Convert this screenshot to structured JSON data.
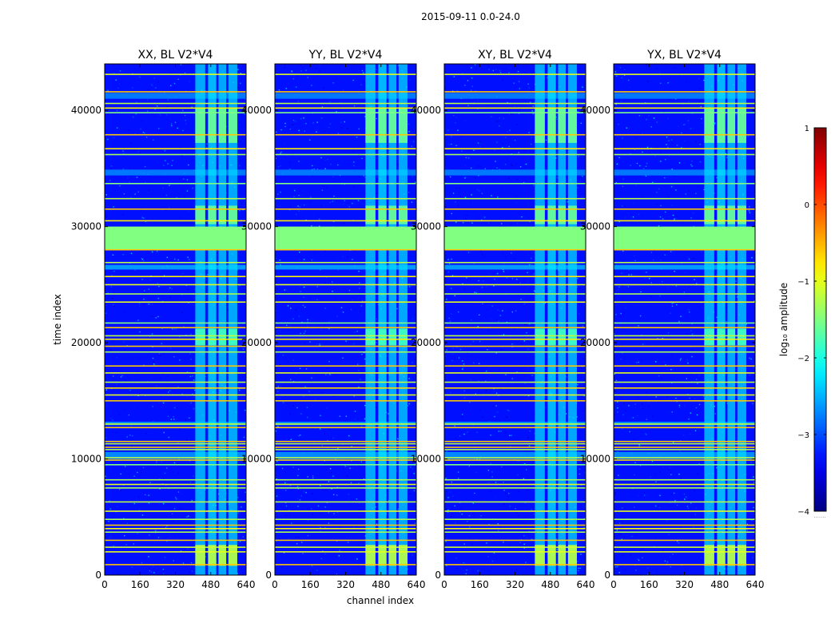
{
  "figure": {
    "suptitle": "2015-09-11 0.0-24.0"
  },
  "chart_data": {
    "type": "heatmap",
    "xlabel": "channel index",
    "ylabel": "time index",
    "xlim": [
      0,
      640
    ],
    "ylim": [
      0,
      44000
    ],
    "x_ticks": [
      0,
      160,
      320,
      480,
      640
    ],
    "y_ticks": [
      0,
      10000,
      20000,
      30000,
      40000
    ],
    "x_tick_labels": [
      "0",
      "160",
      "320",
      "480",
      "640"
    ],
    "y_tick_labels": [
      "0",
      "10000",
      "20000",
      "30000",
      "40000"
    ],
    "panels": [
      {
        "title": "XX, BL V2*V4",
        "pol": "XX",
        "crosspol": false
      },
      {
        "title": "YY, BL V2*V4",
        "pol": "YY",
        "crosspol": false
      },
      {
        "title": "XY, BL V2*V4",
        "pol": "XY",
        "crosspol": true
      },
      {
        "title": "YX, BL V2*V4",
        "pol": "YX",
        "crosspol": true
      }
    ],
    "background_log_amplitude": -3.3,
    "flag_value": -1.5,
    "flagged_bands": [
      {
        "t0": 28000,
        "t1": 30000,
        "value": -1.5
      }
    ],
    "rfi_channels": [
      {
        "c0": 410,
        "c1": 455,
        "value": -2.3
      },
      {
        "c0": 468,
        "c1": 505,
        "value": -2.2
      },
      {
        "c0": 515,
        "c1": 550,
        "value": -2.3
      },
      {
        "c0": 560,
        "c1": 600,
        "value": -2.3
      }
    ],
    "rfi_bursts": [
      {
        "t0": 37200,
        "t1": 40200,
        "value": -1.6
      },
      {
        "t0": 30200,
        "t1": 31800,
        "value": -1.6
      },
      {
        "t0": 19800,
        "t1": 21200,
        "value": -1.8
      },
      {
        "t0": 800,
        "t1": 2600,
        "value": -1.2
      }
    ],
    "horizontal_lines": [
      {
        "t": 43100,
        "value": -1.0
      },
      {
        "t": 41600,
        "value": -0.6
      },
      {
        "t": 40600,
        "value": -1.2
      },
      {
        "t": 40200,
        "value": -0.8
      },
      {
        "t": 39800,
        "value": -1.5
      },
      {
        "t": 37900,
        "value": -0.6
      },
      {
        "t": 36700,
        "value": -0.8
      },
      {
        "t": 36200,
        "value": -1.3
      },
      {
        "t": 33700,
        "value": -1.5
      },
      {
        "t": 32400,
        "value": -1.2
      },
      {
        "t": 31500,
        "value": -0.6
      },
      {
        "t": 30500,
        "value": -0.8
      },
      {
        "t": 28000,
        "value": -0.6
      },
      {
        "t": 26900,
        "value": -1.2
      },
      {
        "t": 25700,
        "value": -0.8
      },
      {
        "t": 25000,
        "value": -1.0
      },
      {
        "t": 24200,
        "value": -1.3
      },
      {
        "t": 23500,
        "value": -1.0
      },
      {
        "t": 21700,
        "value": -1.5
      },
      {
        "t": 21300,
        "value": -0.6
      },
      {
        "t": 20600,
        "value": -1.2
      },
      {
        "t": 20300,
        "value": -0.8
      },
      {
        "t": 19700,
        "value": -0.6
      },
      {
        "t": 19200,
        "value": -1.3
      },
      {
        "t": 18000,
        "value": -0.6
      },
      {
        "t": 17400,
        "value": -1.0
      },
      {
        "t": 16600,
        "value": -1.2
      },
      {
        "t": 16100,
        "value": -0.7
      },
      {
        "t": 15500,
        "value": -1.0
      },
      {
        "t": 15000,
        "value": -0.6
      },
      {
        "t": 13000,
        "value": -1.1
      },
      {
        "t": 12700,
        "value": -0.6
      },
      {
        "t": 11500,
        "value": -0.6
      },
      {
        "t": 11300,
        "value": -1.2
      },
      {
        "t": 11000,
        "value": -0.6
      },
      {
        "t": 10800,
        "value": -1.3
      },
      {
        "t": 10100,
        "value": -1.2
      },
      {
        "t": 9900,
        "value": -0.7
      },
      {
        "t": 9500,
        "value": -1.5
      },
      {
        "t": 8200,
        "value": -1.3
      },
      {
        "t": 7800,
        "value": -1.0
      },
      {
        "t": 7500,
        "value": -1.3
      },
      {
        "t": 6300,
        "value": -1.2
      },
      {
        "t": 5500,
        "value": -1.0
      },
      {
        "t": 4800,
        "value": -1.3
      },
      {
        "t": 4300,
        "value": -0.6
      },
      {
        "t": 4000,
        "value": -0.9
      },
      {
        "t": 3700,
        "value": -1.3
      },
      {
        "t": 3000,
        "value": -0.6
      },
      {
        "t": 2400,
        "value": -1.1
      },
      {
        "t": 2000,
        "value": -1.0
      },
      {
        "t": 900,
        "value": -0.6
      }
    ],
    "broadband_rows": [
      {
        "t0": 41000,
        "t1": 41500,
        "value": -2.7
      },
      {
        "t0": 34400,
        "t1": 34900,
        "value": -2.7
      },
      {
        "t0": 26300,
        "t1": 26700,
        "value": -2.5
      },
      {
        "t0": 12900,
        "t1": 13200,
        "value": -2.6
      },
      {
        "t0": 10000,
        "t1": 10600,
        "value": -2.6
      }
    ],
    "colorbar": {
      "label": "log₁₀ amplitude",
      "min": -4,
      "max": 1,
      "ticks": [
        1,
        0,
        -1,
        -2,
        -3,
        -4
      ],
      "tick_labels": [
        "1",
        "0",
        "−1",
        "−2",
        "−3",
        "−4"
      ],
      "colormap": "jet",
      "extend_label": "......."
    }
  }
}
